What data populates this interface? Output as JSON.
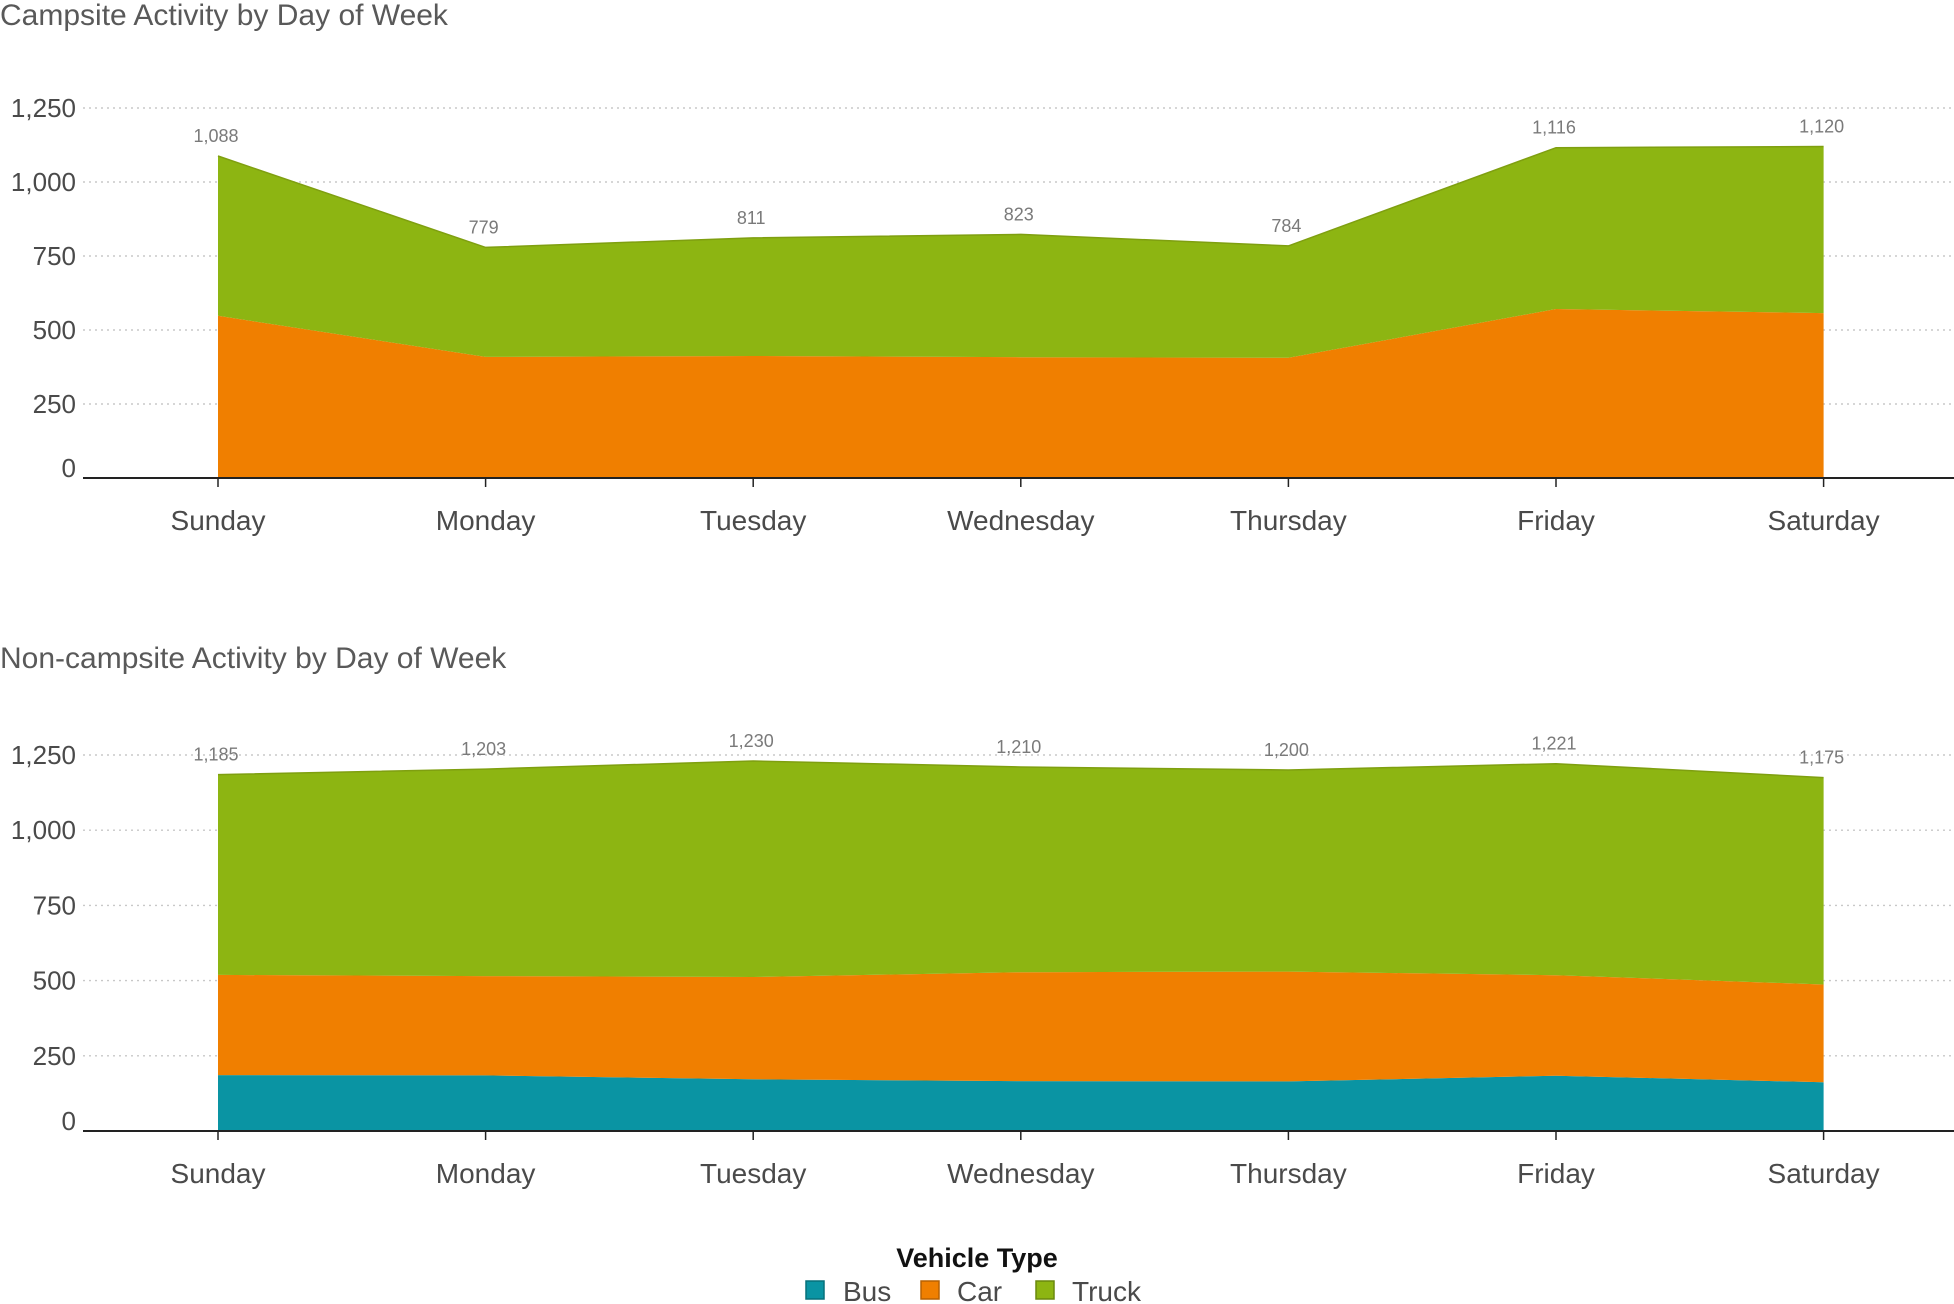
{
  "legend": {
    "title": "Vehicle Type",
    "items": [
      {
        "key": "bus",
        "label": "Bus",
        "color": "#0a94a3"
      },
      {
        "key": "car",
        "label": "Car",
        "color": "#f07f00"
      },
      {
        "key": "truck",
        "label": "Truck",
        "color": "#8db512"
      }
    ]
  },
  "chart_data": [
    {
      "type": "area",
      "stacked": true,
      "title": "Campsite Activity by Day of Week",
      "categories": [
        "Sunday",
        "Monday",
        "Tuesday",
        "Wednesday",
        "Thursday",
        "Friday",
        "Saturday"
      ],
      "ylim": [
        0,
        1250
      ],
      "yticks": [
        0,
        250,
        500,
        750,
        1000,
        1250
      ],
      "ytick_labels": [
        "0",
        "250",
        "500",
        "750",
        "1,000",
        "1,250"
      ],
      "grid": true,
      "series": [
        {
          "name": "Bus",
          "values": [
            0,
            0,
            0,
            0,
            0,
            0,
            0
          ]
        },
        {
          "name": "Car",
          "values": [
            548,
            409,
            412,
            408,
            406,
            571,
            557
          ]
        },
        {
          "name": "Truck",
          "values": [
            540,
            370,
            399,
            415,
            378,
            545,
            563
          ]
        }
      ],
      "totals": [
        1088,
        779,
        811,
        823,
        784,
        1116,
        1120
      ],
      "total_labels": [
        "1,088",
        "779",
        "811",
        "823",
        "784",
        "1,116",
        "1,120"
      ]
    },
    {
      "type": "area",
      "stacked": true,
      "title": "Non-campsite Activity by Day of Week",
      "categories": [
        "Sunday",
        "Monday",
        "Tuesday",
        "Wednesday",
        "Thursday",
        "Friday",
        "Saturday"
      ],
      "ylim": [
        0,
        1250
      ],
      "yticks": [
        0,
        250,
        500,
        750,
        1000,
        1250
      ],
      "ytick_labels": [
        "0",
        "250",
        "500",
        "750",
        "1,000",
        "1,250"
      ],
      "grid": true,
      "series": [
        {
          "name": "Bus",
          "values": [
            186,
            185,
            172,
            166,
            165,
            184,
            162
          ]
        },
        {
          "name": "Car",
          "values": [
            333,
            330,
            340,
            362,
            365,
            334,
            325
          ]
        },
        {
          "name": "Truck",
          "values": [
            666,
            688,
            718,
            682,
            670,
            703,
            688
          ]
        }
      ],
      "totals": [
        1185,
        1203,
        1230,
        1210,
        1200,
        1221,
        1175
      ],
      "total_labels": [
        "1,185",
        "1,203",
        "1,230",
        "1,210",
        "1,200",
        "1,221",
        "1,175"
      ]
    }
  ]
}
